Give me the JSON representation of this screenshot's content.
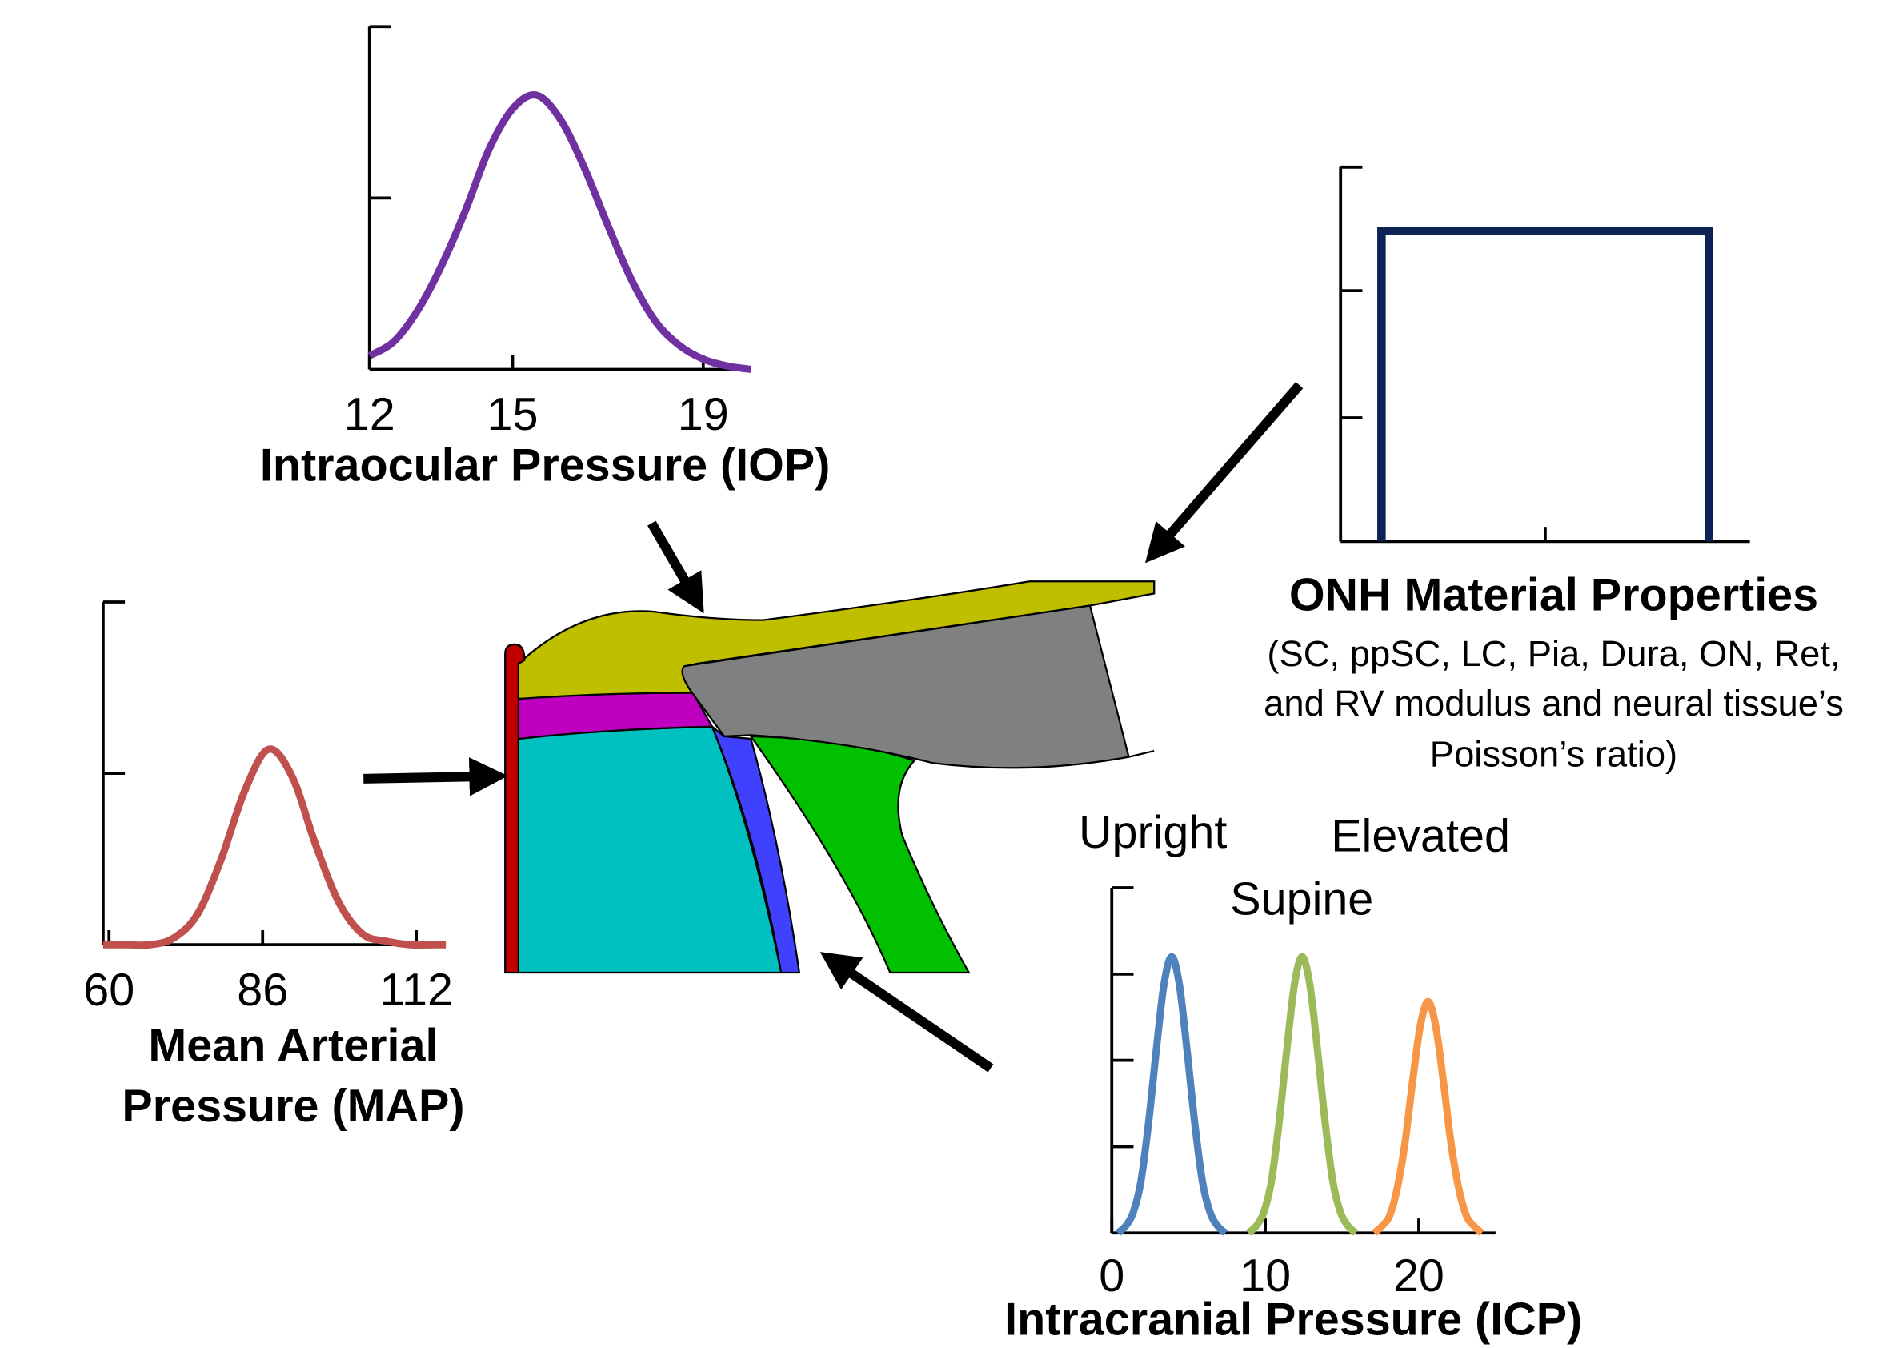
{
  "chart_data": [
    {
      "type": "line",
      "smooth": true,
      "xlabel": "Intraocular Pressure (IOP)",
      "xlim": [
        12,
        20
      ],
      "xticks": [
        12,
        15,
        19
      ],
      "ylim": [
        0,
        1
      ],
      "yticks": [
        0.5,
        1
      ],
      "ytick_labels": false,
      "series": [
        {
          "color": "#7030a0",
          "x": [
            12,
            12.5,
            13,
            13.5,
            14,
            14.5,
            15,
            15.5,
            16,
            16.5,
            17,
            17.5,
            18,
            18.5,
            19,
            19.5,
            20
          ],
          "values": [
            0.04,
            0.08,
            0.17,
            0.3,
            0.46,
            0.64,
            0.76,
            0.8,
            0.73,
            0.59,
            0.42,
            0.26,
            0.14,
            0.07,
            0.03,
            0.01,
            0
          ]
        }
      ]
    },
    {
      "type": "line",
      "smooth": true,
      "xlabel_lines": [
        "Mean Arterial",
        "Pressure (MAP)"
      ],
      "xlim": [
        59,
        117
      ],
      "xticks": [
        60,
        86,
        112
      ],
      "ylim": [
        0,
        1
      ],
      "yticks": [
        0.5,
        1
      ],
      "ytick_labels": false,
      "series": [
        {
          "color": "#c0504d",
          "x": [
            59,
            63,
            67,
            71,
            75,
            79,
            83,
            87,
            91,
            95,
            99,
            103,
            107,
            111,
            115,
            117
          ],
          "values": [
            0,
            0,
            0,
            0.02,
            0.09,
            0.25,
            0.45,
            0.57,
            0.49,
            0.29,
            0.12,
            0.03,
            0.01,
            0,
            0,
            0
          ]
        }
      ]
    },
    {
      "type": "line",
      "smooth": false,
      "xlabel": "ONH Material Properties",
      "note_lines": [
        "(SC, ppSC, LC, Pia, Dura, ON, Ret,",
        "and RV modulus and neural tissue’s",
        "Poisson’s ratio)"
      ],
      "xlim": [
        0,
        1
      ],
      "xticks": [
        0.1,
        0.5,
        0.9
      ],
      "xtick_labels": false,
      "ylim": [
        0,
        1
      ],
      "yticks": [
        0.33,
        0.67,
        1
      ],
      "ytick_labels": false,
      "series": [
        {
          "color": "#0d2356",
          "x": [
            0.1,
            0.1,
            0.9,
            0.9
          ],
          "values": [
            0,
            0.83,
            0.83,
            0
          ]
        }
      ]
    },
    {
      "type": "line",
      "smooth": true,
      "xlabel": "Intracranial Pressure (ICP)",
      "xlim": [
        0,
        25
      ],
      "xticks": [
        0,
        10,
        20
      ],
      "ylim": [
        0,
        1
      ],
      "yticks": [
        0.25,
        0.5,
        0.75,
        1
      ],
      "ytick_labels": false,
      "series": [
        {
          "name": "Upright",
          "color": "#4f81bd",
          "x": [
            0.4,
            0.9,
            1.4,
            1.9,
            2.4,
            2.9,
            3.4,
            3.9,
            4.4,
            4.9,
            5.4,
            5.9,
            6.4,
            6.9,
            7.4
          ],
          "values": [
            0,
            0.02,
            0.06,
            0.15,
            0.32,
            0.53,
            0.72,
            0.8,
            0.72,
            0.53,
            0.32,
            0.15,
            0.06,
            0.02,
            0
          ]
        },
        {
          "name": "Supine",
          "color": "#9bbb59",
          "x": [
            8.9,
            9.4,
            9.9,
            10.4,
            10.9,
            11.4,
            11.9,
            12.4,
            12.9,
            13.4,
            13.9,
            14.4,
            14.9,
            15.4,
            15.9
          ],
          "values": [
            0,
            0.02,
            0.06,
            0.15,
            0.32,
            0.53,
            0.72,
            0.8,
            0.72,
            0.53,
            0.32,
            0.15,
            0.06,
            0.02,
            0
          ]
        },
        {
          "name": "Elevated",
          "color": "#f79646",
          "x": [
            17.1,
            17.6,
            18.1,
            18.6,
            19.1,
            19.6,
            20.1,
            20.6,
            21.1,
            21.6,
            22.1,
            22.6,
            23.1,
            23.6,
            24.1
          ],
          "values": [
            0,
            0.02,
            0.05,
            0.13,
            0.26,
            0.44,
            0.6,
            0.67,
            0.6,
            0.44,
            0.26,
            0.13,
            0.05,
            0.02,
            0
          ]
        }
      ]
    }
  ]
}
